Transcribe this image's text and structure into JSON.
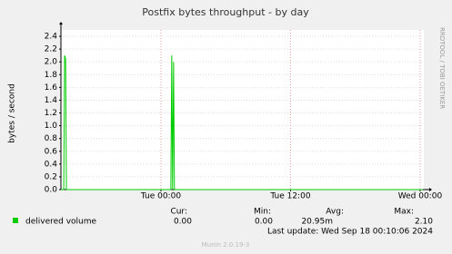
{
  "chart_data": {
    "type": "line",
    "title": "Postfix bytes throughput - by day",
    "ylabel": "bytes / second",
    "series": [
      {
        "name": "delivered volume",
        "color": "#00cc00",
        "x": [
          -9.25,
          -9.0,
          -8.92,
          -8.83,
          -8.75,
          0.92,
          1.0,
          1.08,
          1.17,
          1.25,
          24.25
        ],
        "values": [
          0,
          0,
          2.1,
          2.05,
          0,
          0,
          2.1,
          0,
          2.0,
          0,
          0
        ]
      }
    ],
    "xlim": [
      -9.26,
      24.34
    ],
    "xticks": [
      {
        "value": 0,
        "label": "Tue 00:00"
      },
      {
        "value": 12,
        "label": "Tue 12:00"
      },
      {
        "value": 24,
        "label": "Wed 00:00"
      }
    ],
    "ylim": [
      0,
      2.5
    ],
    "yticks": [
      {
        "value": 0,
        "label": "0.0"
      },
      0.2,
      0.4,
      0.6,
      0.8,
      {
        "value": 1,
        "label": "1.0"
      },
      1.2,
      1.4,
      1.6,
      1.8,
      {
        "value": 2,
        "label": "2.0"
      },
      2.2,
      2.4
    ],
    "grid": true,
    "stats_headers": [
      "Cur:",
      "Min:",
      "Avg:",
      "Max:"
    ],
    "stats_values": [
      "0.00",
      "0.00",
      "20.95m",
      "2.10"
    ],
    "last_update": "Last update:  Wed Sep 18 00:10:06 2024",
    "credit": "Munin 2.0.19-3",
    "watermark": "RRDTOOL / TOBI OETIKER"
  }
}
